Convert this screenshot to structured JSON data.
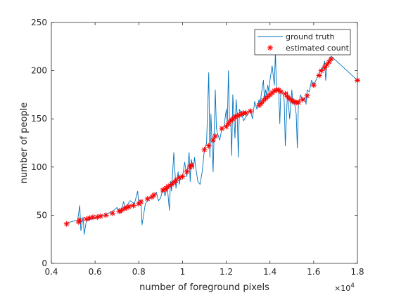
{
  "chart_data": {
    "type": "line",
    "xlabel": "number of foreground pixels",
    "ylabel": "number of people",
    "x_exponent_label": "×10",
    "x_exponent_power": "4",
    "xlim": [
      0.4,
      1.8
    ],
    "ylim": [
      0,
      250
    ],
    "xticks": [
      "0.4",
      "0.6",
      "0.8",
      "1",
      "1.2",
      "1.4",
      "1.6",
      "1.8"
    ],
    "yticks": [
      "0",
      "50",
      "100",
      "150",
      "200",
      "250"
    ],
    "legend_position": "top-right",
    "colors": {
      "ground_truth": "#0072bd",
      "estimated": "#ff0000",
      "axis": "#262626"
    },
    "series": [
      {
        "name": "ground truth",
        "style": "line",
        "points": [
          [
            0.47,
            42
          ],
          [
            0.52,
            45
          ],
          [
            0.53,
            60
          ],
          [
            0.535,
            34
          ],
          [
            0.545,
            48
          ],
          [
            0.55,
            30
          ],
          [
            0.56,
            44
          ],
          [
            0.58,
            46
          ],
          [
            0.6,
            47
          ],
          [
            0.62,
            49
          ],
          [
            0.64,
            50
          ],
          [
            0.66,
            52
          ],
          [
            0.68,
            54
          ],
          [
            0.7,
            58
          ],
          [
            0.72,
            52
          ],
          [
            0.73,
            64
          ],
          [
            0.74,
            58
          ],
          [
            0.76,
            65
          ],
          [
            0.78,
            62
          ],
          [
            0.795,
            75
          ],
          [
            0.8,
            60
          ],
          [
            0.81,
            66
          ],
          [
            0.815,
            40
          ],
          [
            0.83,
            62
          ],
          [
            0.85,
            68
          ],
          [
            0.87,
            70
          ],
          [
            0.88,
            74
          ],
          [
            0.89,
            65
          ],
          [
            0.9,
            68
          ],
          [
            0.91,
            78
          ],
          [
            0.92,
            70
          ],
          [
            0.93,
            80
          ],
          [
            0.94,
            55
          ],
          [
            0.945,
            85
          ],
          [
            0.95,
            75
          ],
          [
            0.96,
            115
          ],
          [
            0.97,
            78
          ],
          [
            0.98,
            95
          ],
          [
            0.985,
            82
          ],
          [
            0.99,
            88
          ],
          [
            1.0,
            90
          ],
          [
            1.01,
            105
          ],
          [
            1.02,
            90
          ],
          [
            1.03,
            115
          ],
          [
            1.035,
            85
          ],
          [
            1.04,
            108
          ],
          [
            1.05,
            98
          ],
          [
            1.055,
            110
          ],
          [
            1.06,
            100
          ],
          [
            1.07,
            85
          ],
          [
            1.08,
            82
          ],
          [
            1.09,
            95
          ],
          [
            1.1,
            118
          ],
          [
            1.11,
            125
          ],
          [
            1.12,
            198
          ],
          [
            1.125,
            110
          ],
          [
            1.13,
            155
          ],
          [
            1.14,
            95
          ],
          [
            1.15,
            180
          ],
          [
            1.155,
            140
          ],
          [
            1.16,
            135
          ],
          [
            1.17,
            128
          ],
          [
            1.18,
            140
          ],
          [
            1.19,
            142
          ],
          [
            1.2,
            160
          ],
          [
            1.205,
            145
          ],
          [
            1.21,
            200
          ],
          [
            1.215,
            148
          ],
          [
            1.22,
            150
          ],
          [
            1.225,
            112
          ],
          [
            1.23,
            175
          ],
          [
            1.24,
            130
          ],
          [
            1.245,
            170
          ],
          [
            1.25,
            155
          ],
          [
            1.255,
            110
          ],
          [
            1.26,
            160
          ],
          [
            1.27,
            155
          ],
          [
            1.28,
            148
          ],
          [
            1.29,
            152
          ],
          [
            1.3,
            155
          ],
          [
            1.31,
            160
          ],
          [
            1.32,
            150
          ],
          [
            1.33,
            168
          ],
          [
            1.34,
            160
          ],
          [
            1.35,
            170
          ],
          [
            1.355,
            165
          ],
          [
            1.36,
            175
          ],
          [
            1.37,
            190
          ],
          [
            1.375,
            170
          ],
          [
            1.38,
            180
          ],
          [
            1.385,
            175
          ],
          [
            1.39,
            185
          ],
          [
            1.395,
            178
          ],
          [
            1.4,
            190
          ],
          [
            1.41,
            205
          ],
          [
            1.42,
            185
          ],
          [
            1.425,
            220
          ],
          [
            1.43,
            178
          ],
          [
            1.44,
            180
          ],
          [
            1.445,
            145
          ],
          [
            1.45,
            180
          ],
          [
            1.46,
            175
          ],
          [
            1.465,
            170
          ],
          [
            1.47,
            122
          ],
          [
            1.48,
            178
          ],
          [
            1.49,
            150
          ],
          [
            1.5,
            180
          ],
          [
            1.505,
            165
          ],
          [
            1.51,
            170
          ],
          [
            1.52,
            155
          ],
          [
            1.525,
            120
          ],
          [
            1.53,
            165
          ],
          [
            1.54,
            175
          ],
          [
            1.55,
            168
          ],
          [
            1.56,
            172
          ],
          [
            1.565,
            165
          ],
          [
            1.57,
            180
          ],
          [
            1.58,
            178
          ],
          [
            1.59,
            190
          ],
          [
            1.6,
            185
          ],
          [
            1.61,
            190
          ],
          [
            1.62,
            195
          ],
          [
            1.63,
            200
          ],
          [
            1.64,
            202
          ],
          [
            1.65,
            210
          ],
          [
            1.655,
            190
          ],
          [
            1.66,
            205
          ],
          [
            1.67,
            212
          ],
          [
            1.68,
            215
          ],
          [
            1.69,
            213
          ],
          [
            1.8,
            190
          ]
        ]
      },
      {
        "name": "estimated count",
        "style": "marker",
        "points": [
          [
            0.47,
            41
          ],
          [
            0.525,
            43
          ],
          [
            0.53,
            45
          ],
          [
            0.56,
            46
          ],
          [
            0.575,
            47
          ],
          [
            0.59,
            48
          ],
          [
            0.61,
            48
          ],
          [
            0.625,
            49
          ],
          [
            0.65,
            50
          ],
          [
            0.68,
            52
          ],
          [
            0.71,
            54
          ],
          [
            0.72,
            55
          ],
          [
            0.735,
            57
          ],
          [
            0.745,
            58
          ],
          [
            0.755,
            59
          ],
          [
            0.775,
            60
          ],
          [
            0.8,
            62
          ],
          [
            0.81,
            64
          ],
          [
            0.84,
            67
          ],
          [
            0.86,
            69
          ],
          [
            0.87,
            71
          ],
          [
            0.91,
            76
          ],
          [
            0.92,
            77
          ],
          [
            0.925,
            78
          ],
          [
            0.935,
            80
          ],
          [
            0.95,
            82
          ],
          [
            0.96,
            84
          ],
          [
            0.97,
            86
          ],
          [
            0.985,
            89
          ],
          [
            1.0,
            90
          ],
          [
            1.02,
            95
          ],
          [
            1.035,
            100
          ],
          [
            1.04,
            102
          ],
          [
            1.1,
            118
          ],
          [
            1.12,
            122
          ],
          [
            1.14,
            128
          ],
          [
            1.15,
            132
          ],
          [
            1.18,
            140
          ],
          [
            1.2,
            142
          ],
          [
            1.21,
            145
          ],
          [
            1.22,
            148
          ],
          [
            1.23,
            150
          ],
          [
            1.24,
            152
          ],
          [
            1.25,
            153
          ],
          [
            1.26,
            154
          ],
          [
            1.27,
            155
          ],
          [
            1.28,
            156
          ],
          [
            1.29,
            156
          ],
          [
            1.31,
            158
          ],
          [
            1.35,
            164
          ],
          [
            1.36,
            166
          ],
          [
            1.37,
            169
          ],
          [
            1.38,
            171
          ],
          [
            1.39,
            173
          ],
          [
            1.4,
            175
          ],
          [
            1.41,
            177
          ],
          [
            1.42,
            179
          ],
          [
            1.43,
            180
          ],
          [
            1.44,
            180
          ],
          [
            1.45,
            178
          ],
          [
            1.47,
            176
          ],
          [
            1.48,
            173
          ],
          [
            1.49,
            171
          ],
          [
            1.5,
            169
          ],
          [
            1.51,
            168
          ],
          [
            1.52,
            167
          ],
          [
            1.53,
            167
          ],
          [
            1.55,
            170
          ],
          [
            1.57,
            174
          ],
          [
            1.6,
            185
          ],
          [
            1.625,
            195
          ],
          [
            1.635,
            200
          ],
          [
            1.65,
            203
          ],
          [
            1.66,
            206
          ],
          [
            1.67,
            209
          ],
          [
            1.68,
            212
          ],
          [
            1.8,
            190
          ]
        ]
      }
    ]
  }
}
